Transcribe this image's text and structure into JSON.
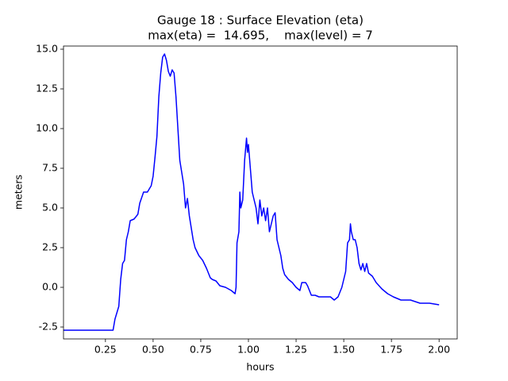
{
  "chart_data": {
    "type": "line",
    "title": "Gauge 18 : Surface Elevation (eta)",
    "subtitle": "max(eta) =  14.695,    max(level) = 7",
    "x_label": "hours",
    "y_label": "meters",
    "color": "#0000ff",
    "xlim": [
      0.03,
      2.095
    ],
    "ylim": [
      -3.25,
      15.2
    ],
    "xticks": [
      0.25,
      {
        "value": 0.5,
        "label": "0.50"
      },
      0.75,
      {
        "value": 1.0,
        "label": "1.00"
      },
      1.25,
      {
        "value": 1.5,
        "label": "1.50"
      },
      1.75,
      {
        "value": 2.0,
        "label": "2.00"
      }
    ],
    "yticks": [
      -2.5,
      {
        "value": 0.0,
        "label": "0.0"
      },
      2.5,
      {
        "value": 5.0,
        "label": "5.0"
      },
      7.5,
      {
        "value": 10.0,
        "label": "10.0"
      },
      12.5,
      {
        "value": 15.0,
        "label": "15.0"
      }
    ],
    "grid": false,
    "x": [
      0.03,
      0.29,
      0.3,
      0.32,
      0.33,
      0.34,
      0.35,
      0.36,
      0.37,
      0.38,
      0.4,
      0.42,
      0.43,
      0.45,
      0.47,
      0.49,
      0.5,
      0.51,
      0.52,
      0.53,
      0.54,
      0.55,
      0.56,
      0.57,
      0.58,
      0.59,
      0.6,
      0.61,
      0.62,
      0.63,
      0.64,
      0.66,
      0.67,
      0.68,
      0.69,
      0.71,
      0.72,
      0.74,
      0.76,
      0.78,
      0.8,
      0.81,
      0.83,
      0.85,
      0.88,
      0.91,
      0.93,
      0.935,
      0.94,
      0.95,
      0.955,
      0.96,
      0.97,
      0.98,
      0.99,
      0.995,
      1.0,
      1.01,
      1.02,
      1.03,
      1.04,
      1.05,
      1.06,
      1.07,
      1.08,
      1.09,
      1.1,
      1.11,
      1.12,
      1.13,
      1.14,
      1.15,
      1.17,
      1.18,
      1.19,
      1.21,
      1.23,
      1.25,
      1.27,
      1.28,
      1.3,
      1.31,
      1.33,
      1.35,
      1.37,
      1.4,
      1.43,
      1.45,
      1.47,
      1.49,
      1.5,
      1.51,
      1.52,
      1.53,
      1.535,
      1.54,
      1.55,
      1.56,
      1.57,
      1.58,
      1.59,
      1.6,
      1.61,
      1.62,
      1.63,
      1.65,
      1.67,
      1.7,
      1.73,
      1.76,
      1.8,
      1.85,
      1.9,
      1.95,
      2.0
    ],
    "values": [
      -2.7,
      -2.7,
      -2.0,
      -1.2,
      0.5,
      1.5,
      1.7,
      3.0,
      3.5,
      4.2,
      4.3,
      4.6,
      5.3,
      6.0,
      6.0,
      6.4,
      7.0,
      8.2,
      9.5,
      12.0,
      13.5,
      14.5,
      14.7,
      14.3,
      13.6,
      13.3,
      13.7,
      13.5,
      12.0,
      10.0,
      8.0,
      6.5,
      5.0,
      5.6,
      4.5,
      3.0,
      2.5,
      2.0,
      1.7,
      1.2,
      0.6,
      0.5,
      0.4,
      0.1,
      0.0,
      -0.2,
      -0.4,
      0.0,
      2.8,
      3.5,
      6.0,
      5.0,
      5.5,
      8.0,
      9.4,
      8.5,
      9.0,
      7.5,
      6.0,
      5.5,
      5.0,
      4.0,
      5.5,
      4.5,
      5.0,
      4.2,
      5.0,
      3.5,
      4.0,
      4.5,
      4.7,
      3.0,
      2.0,
      1.2,
      0.8,
      0.5,
      0.3,
      0.0,
      -0.2,
      0.3,
      0.3,
      0.1,
      -0.5,
      -0.5,
      -0.6,
      -0.6,
      -0.6,
      -0.8,
      -0.6,
      0.0,
      0.5,
      1.0,
      2.8,
      3.0,
      4.0,
      3.5,
      3.0,
      3.0,
      2.5,
      1.5,
      1.1,
      1.5,
      1.0,
      1.5,
      0.9,
      0.7,
      0.3,
      -0.1,
      -0.4,
      -0.6,
      -0.8,
      -0.8,
      -1.0,
      -1.0,
      -1.1
    ]
  }
}
